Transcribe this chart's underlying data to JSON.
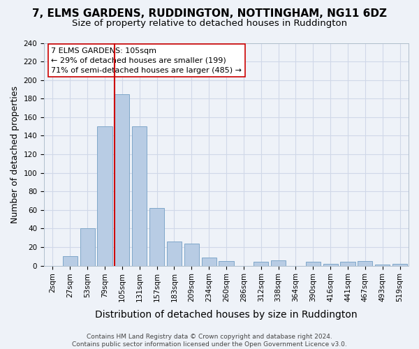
{
  "title": "7, ELMS GARDENS, RUDDINGTON, NOTTINGHAM, NG11 6DZ",
  "subtitle": "Size of property relative to detached houses in Ruddington",
  "xlabel": "Distribution of detached houses by size in Ruddington",
  "ylabel": "Number of detached properties",
  "categories": [
    "2sqm",
    "27sqm",
    "53sqm",
    "79sqm",
    "105sqm",
    "131sqm",
    "157sqm",
    "183sqm",
    "209sqm",
    "234sqm",
    "260sqm",
    "286sqm",
    "312sqm",
    "338sqm",
    "364sqm",
    "390sqm",
    "416sqm",
    "441sqm",
    "467sqm",
    "493sqm",
    "519sqm"
  ],
  "values": [
    0,
    10,
    40,
    150,
    185,
    150,
    62,
    26,
    24,
    9,
    5,
    0,
    4,
    6,
    0,
    4,
    2,
    4,
    5,
    1,
    2
  ],
  "bar_color": "#b8cce4",
  "bar_edge_color": "#7fa7c9",
  "vline_color": "#cc0000",
  "vline_bar_index": 4,
  "annotation_line1": "7 ELMS GARDENS: 105sqm",
  "annotation_line2": "← 29% of detached houses are smaller (199)",
  "annotation_line3": "71% of semi-detached houses are larger (485) →",
  "annotation_box_facecolor": "#ffffff",
  "annotation_box_edgecolor": "#cc0000",
  "grid_color": "#d0d8e8",
  "bg_color": "#eef2f8",
  "ylim": [
    0,
    240
  ],
  "ytick_step": 20,
  "footer_line1": "Contains HM Land Registry data © Crown copyright and database right 2024.",
  "footer_line2": "Contains public sector information licensed under the Open Government Licence v3.0.",
  "title_fontsize": 11,
  "subtitle_fontsize": 9.5,
  "xlabel_fontsize": 10,
  "ylabel_fontsize": 9,
  "tick_fontsize": 7.5,
  "annotation_fontsize": 8,
  "footer_fontsize": 6.5
}
